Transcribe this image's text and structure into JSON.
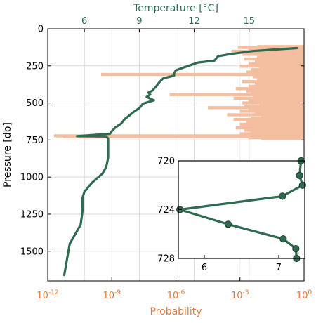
{
  "chart_data": [
    {
      "type": "line",
      "xlabel_top": "Temperature [°C]",
      "xlabel_bottom": "Probability",
      "ylabel": "Pressure [db]",
      "top_axis": {
        "label": "Temperature [°C]",
        "range": [
          4,
          18
        ],
        "ticks": [
          6,
          9,
          12,
          15
        ],
        "tick_labels": [
          "6",
          "9",
          "12",
          "15"
        ],
        "color": "#2f6b50"
      },
      "bottom_axis": {
        "label": "Probability",
        "scale": "log",
        "range": [
          -12,
          0
        ],
        "ticks": [
          -12,
          -9,
          -6,
          -3,
          0
        ],
        "tick_labels": [
          {
            "base": "10",
            "exp": "-12"
          },
          {
            "base": "10",
            "exp": "-9"
          },
          {
            "base": "10",
            "exp": "-6"
          },
          {
            "base": "10",
            "exp": "-3"
          },
          {
            "base": "10",
            "exp": "0"
          }
        ],
        "color": "#e07b3f"
      },
      "y_axis": {
        "label": "Pressure [db]",
        "range": [
          0,
          1700
        ],
        "inverted": true,
        "ticks": [
          0,
          250,
          500,
          750,
          1000,
          1250,
          1500
        ],
        "tick_labels": [
          "0",
          "250",
          "500",
          "750",
          "1000",
          "1250",
          "1500"
        ]
      },
      "grid": true,
      "series": [
        {
          "kind": "temperature-profile",
          "color": "#2f6b50",
          "points": [
            [
              17.6,
              130
            ],
            [
              15.2,
              150
            ],
            [
              14.0,
              170
            ],
            [
              13.3,
              185
            ],
            [
              13.1,
              215
            ],
            [
              12.2,
              228
            ],
            [
              11.4,
              262
            ],
            [
              11.0,
              280
            ],
            [
              10.9,
              300
            ],
            [
              10.9,
              316
            ],
            [
              10.3,
              335
            ],
            [
              10.1,
              360
            ],
            [
              9.9,
              392
            ],
            [
              9.7,
              418
            ],
            [
              9.5,
              430
            ],
            [
              9.6,
              443
            ],
            [
              9.4,
              460
            ],
            [
              9.8,
              482
            ],
            [
              9.2,
              505
            ],
            [
              9.0,
              535
            ],
            [
              8.7,
              560
            ],
            [
              8.4,
              590
            ],
            [
              8.2,
              610
            ],
            [
              8.0,
              640
            ],
            [
              7.7,
              665
            ],
            [
              7.5,
              690
            ],
            [
              7.4,
              708
            ],
            [
              5.6,
              724
            ],
            [
              7.2,
              726
            ],
            [
              7.3,
              740
            ],
            [
              7.3,
              770
            ],
            [
              7.3,
              800
            ],
            [
              7.3,
              870
            ],
            [
              7.2,
              930
            ],
            [
              7.0,
              975
            ],
            [
              6.4,
              1040
            ],
            [
              6.0,
              1100
            ],
            [
              5.9,
              1140
            ],
            [
              5.9,
              1230
            ],
            [
              5.8,
              1320
            ],
            [
              5.2,
              1450
            ],
            [
              4.9,
              1660
            ]
          ]
        },
        {
          "kind": "probability",
          "color": "#f3bfa0",
          "note_values_are_log10": true,
          "bands": [
            [
              120,
              -2.2
            ],
            [
              126,
              -3.1
            ],
            [
              132,
              -1.8
            ],
            [
              138,
              -2.6
            ],
            [
              145,
              -2.0
            ],
            [
              152,
              -3.4
            ],
            [
              158,
              -1.6
            ],
            [
              165,
              -2.4
            ],
            [
              172,
              -2.9
            ],
            [
              180,
              -1.9
            ],
            [
              188,
              -2.2
            ],
            [
              196,
              -1.4
            ],
            [
              204,
              -2.8
            ],
            [
              212,
              -1.7
            ],
            [
              220,
              -2.3
            ],
            [
              228,
              -1.5
            ],
            [
              236,
              -2.6
            ],
            [
              244,
              -1.8
            ],
            [
              252,
              -3.0
            ],
            [
              260,
              -2.1
            ],
            [
              268,
              -1.6
            ],
            [
              276,
              -2.5
            ],
            [
              284,
              -1.9
            ],
            [
              292,
              -2.7
            ],
            [
              300,
              -2.0
            ],
            [
              308,
              -9.5
            ],
            [
              316,
              -1.7
            ],
            [
              324,
              -2.4
            ],
            [
              332,
              -1.5
            ],
            [
              340,
              -2.2
            ],
            [
              348,
              -1.8
            ],
            [
              356,
              -2.9
            ],
            [
              364,
              -1.6
            ],
            [
              372,
              -2.3
            ],
            [
              380,
              -1.9
            ],
            [
              388,
              -2.6
            ],
            [
              396,
              -1.4
            ],
            [
              404,
              -3.2
            ],
            [
              412,
              -2.0
            ],
            [
              420,
              -2.7
            ],
            [
              428,
              -1.7
            ],
            [
              436,
              -2.5
            ],
            [
              444,
              -6.3
            ],
            [
              452,
              -1.8
            ],
            [
              460,
              -2.4
            ],
            [
              468,
              -3.3
            ],
            [
              476,
              -1.9
            ],
            [
              484,
              -2.6
            ],
            [
              492,
              -1.6
            ],
            [
              500,
              -2.9
            ],
            [
              508,
              -2.1
            ],
            [
              516,
              -1.7
            ],
            [
              524,
              -2.8
            ],
            [
              532,
              -4.5
            ],
            [
              540,
              -1.9
            ],
            [
              548,
              -2.6
            ],
            [
              556,
              -3.0
            ],
            [
              564,
              -1.8
            ],
            [
              572,
              -2.3
            ],
            [
              580,
              -3.6
            ],
            [
              588,
              -2.0
            ],
            [
              596,
              -1.6
            ],
            [
              604,
              -2.5
            ],
            [
              612,
              -3.3
            ],
            [
              620,
              -1.9
            ],
            [
              628,
              -2.7
            ],
            [
              636,
              -2.1
            ],
            [
              644,
              -3.0
            ],
            [
              652,
              -1.7
            ],
            [
              660,
              -2.4
            ],
            [
              668,
              -3.2
            ],
            [
              676,
              -2.0
            ],
            [
              684,
              -2.8
            ],
            [
              692,
              -1.8
            ],
            [
              700,
              -2.5
            ],
            [
              708,
              -3.0
            ],
            [
              716,
              -2.2
            ],
            [
              722,
              -11.7
            ],
            [
              728,
              -11.3
            ],
            [
              734,
              -2.6
            ],
            [
              740,
              -2.0
            ]
          ]
        }
      ]
    },
    {
      "type": "line",
      "role": "inset",
      "x_axis": {
        "range": [
          5.65,
          7.35
        ],
        "ticks": [
          6,
          7
        ],
        "tick_labels": [
          "6",
          "7"
        ]
      },
      "y_axis": {
        "range": [
          720,
          728
        ],
        "inverted": true,
        "ticks": [
          720,
          724,
          728
        ],
        "tick_labels": [
          "720",
          "724",
          "728"
        ]
      },
      "series": [
        {
          "color": "#2f6b50",
          "markers": true,
          "points": [
            [
              7.3,
              720.0
            ],
            [
              7.28,
              721.2
            ],
            [
              7.32,
              722.0
            ],
            [
              7.05,
              722.9
            ],
            [
              5.67,
              724.0
            ],
            [
              6.32,
              725.2
            ],
            [
              7.06,
              726.4
            ],
            [
              7.23,
              727.2
            ],
            [
              7.24,
              728.0
            ]
          ]
        }
      ]
    }
  ]
}
